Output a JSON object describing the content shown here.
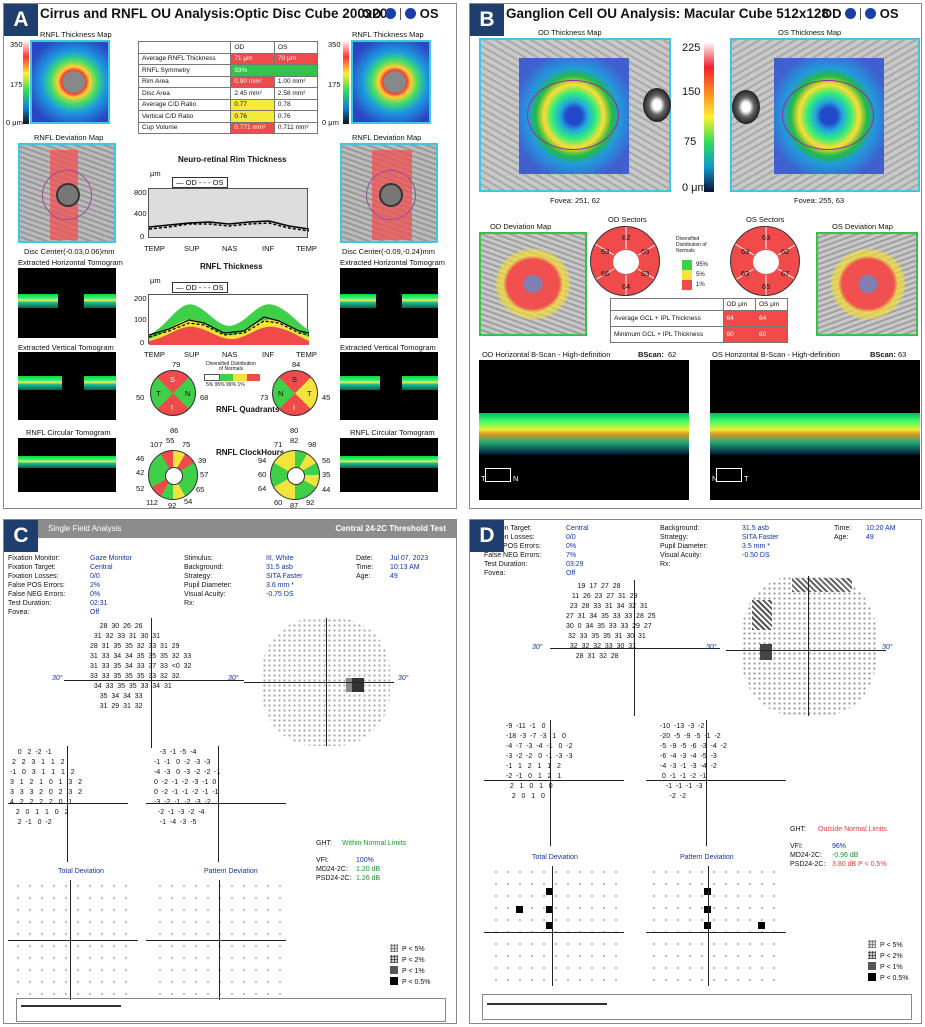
{
  "panelA": {
    "letter": "A",
    "title": "Cirrus and RNFL OU Analysis:Optic Disc Cube 200x200",
    "od": "OD",
    "os": "OS",
    "thick_left": "RNFL Thickness Map",
    "thick_right": "RNFL Thickness Map",
    "scale": [
      "350",
      "175",
      "0 μm"
    ],
    "dev_left": "RNFL Deviation Map",
    "dev_right": "RNFL Deviation Map",
    "disc_left": "Disc Center(-0.03,0.06)mm",
    "disc_right": "Disc Center(-0.09,-0.24)mm",
    "ext_h": "Extracted Horizontal Tomogram",
    "ext_v": "Extracted Vertical Tomogram",
    "circ": "RNFL Circular Tomogram",
    "table": {
      "head": [
        "",
        "OD",
        "OS"
      ],
      "rows": [
        [
          "Average RNFL Thickness",
          "71 μm",
          "70 μm"
        ],
        [
          "RNFL Symmetry",
          "93%",
          ""
        ],
        [
          "Rim Area",
          "0.90 mm²",
          "1.00 mm²"
        ],
        [
          "Disc Area",
          "2.45 mm²",
          "2.58 mm²"
        ],
        [
          "Average C/D Ratio",
          "0.77",
          "0.78"
        ],
        [
          "Vertical C/D Ratio",
          "0.76",
          "0.76"
        ],
        [
          "Cup Volume",
          "0.771 mm³",
          "0.711 mm³"
        ]
      ]
    },
    "rim_title": "Neuro-retinal Rim Thickness",
    "rnfl_title": "RNFL Thickness",
    "unit": "μm",
    "legend": "— OD  - - - OS",
    "xticks": [
      "TEMP",
      "SUP",
      "NAS",
      "INF",
      "TEMP"
    ],
    "rim_yticks": [
      "800",
      "400",
      "0"
    ],
    "rnfl_yticks": [
      "200",
      "100",
      "0"
    ],
    "distrib": "Diversified Distribution of Normals",
    "distrib_vals": [
      "5%",
      "95%",
      "99%",
      "1%"
    ],
    "quad_label": "RNFL Quadrants",
    "clock_label": "RNFL ClockHours",
    "quad_od": {
      "top": "79",
      "left": "50",
      "right": "68",
      "bottom": "86",
      "s": "S",
      "t": "T",
      "n": "N",
      "i": "I"
    },
    "quad_os": {
      "top": "84",
      "left": "73",
      "right": "45",
      "bottom": "80",
      "s": "S",
      "t": "T",
      "n": "N",
      "i": "I"
    },
    "clock_od": [
      "107",
      "55",
      "75",
      "57",
      "46",
      "42",
      "52",
      "112",
      "92",
      "54",
      "65",
      "39"
    ],
    "clock_os": [
      "71",
      "82",
      "98",
      "56",
      "35",
      "44",
      "60",
      "87",
      "92",
      "64",
      "60",
      "94"
    ]
  },
  "panelB": {
    "letter": "B",
    "title": "Ganglion Cell OU Analysis: Macular Cube 512x128",
    "od": "OD",
    "os": "OS",
    "od_map": "OD Thickness Map",
    "os_map": "OS Thickness Map",
    "scale": [
      "225",
      "150",
      "75",
      "0 μm"
    ],
    "fovea_od": "Fovea: 251, 62",
    "fovea_os": "Fovea: 255, 63",
    "od_dev": "OD Deviation Map",
    "os_dev": "OS Deviation Map",
    "od_sec": "OD Sectors",
    "os_sec": "OS Sectors",
    "od_sectors": [
      "62",
      "65",
      "63",
      "64",
      "66",
      "63"
    ],
    "os_sectors": [
      "63",
      "62",
      "67",
      "65",
      "63",
      "63"
    ],
    "distrib": "Diversified Distribution of Normals",
    "distrib_vals": [
      "95%",
      "5%",
      "1%"
    ],
    "table": {
      "head": [
        "",
        "OD μm",
        "OS μm"
      ],
      "rows": [
        [
          "Average GCL + IPL Thickness",
          "64",
          "64"
        ],
        [
          "Minimum GCL + IPL Thickness",
          "60",
          "60"
        ]
      ]
    },
    "bscan_od": "OD Horizontal B-Scan - High-definition",
    "bscan_os": "OS Horizontal B-Scan - High-definition",
    "bscan_lbl": "BScan:",
    "bscan_od_n": "62",
    "bscan_os_n": "63",
    "t": "T",
    "n": "N"
  },
  "panelC": {
    "letter": "C",
    "header_left": "Single Field Analysis",
    "header_right": "Central 24-2C Threshold Test",
    "info_left": [
      [
        "Fixation Monitor:",
        "Gaze Monitor"
      ],
      [
        "Fixation Target:",
        "Central"
      ],
      [
        "Fixation Losses:",
        "0/0"
      ],
      [
        "False POS Errors:",
        "2%"
      ],
      [
        "False NEG Errors:",
        "0%"
      ],
      [
        "Test Duration:",
        "02:31"
      ],
      [
        "Fovea:",
        "Off"
      ]
    ],
    "info_mid": [
      [
        "Stimulus:",
        "III, White"
      ],
      [
        "Background:",
        "31.5 asb"
      ],
      [
        "Strategy:",
        "SITA Faster"
      ],
      [
        "Pupil Diameter:",
        "3.6 mm *"
      ],
      [
        "Visual Acuity:",
        ""
      ],
      [
        "Rx:",
        "-0.75 DS"
      ]
    ],
    "info_right": [
      [
        "Date:",
        "Jul 07, 2023"
      ],
      [
        "Time:",
        "10:13 AM"
      ],
      [
        "Age:",
        "49"
      ]
    ],
    "deg": "30°",
    "thresh": "     28  30  26  26\n  31  32  33  31  30  31\n28  31  35  35  32  33  31  29\n31  33  34  34  35  35  35  32  33\n31  33  35  34  33  37  33  <0  32\n33  33  35  35  35  33  32  32\n  34  33  35  35  33  34  31\n     35  34  34  33\n     31  29  31  32",
    "td": "    0   2  -2  -1\n 2   2   3   1   1   2\n-1   0   3   1   1   1   2\n3   1   2   1   0   1   3   2\n3   3   3   2   0   2   3   2\n4   2   2   2   2   0   1\n   2   0   1   1   0   2\n    2  -1   0  -2",
    "pd": "   -3  -1  -5  -4\n-1  -1   0  -2  -3  -3\n-4  -3   0  -3  -2  -2  -1\n0  -2  -1  -2  -3  -1  0\n0  -2  -1  -1  -2  -1  -1\n-3  -2  -1  -2  -3  -2\n  -2  -1  -3  -2  -4\n   -1  -4  -3  -5",
    "td_label": "Total Deviation",
    "pd_label": "Pattern Deviation",
    "ght": "GHT:",
    "ght_val": "Within Normal Limits",
    "stats": [
      [
        "VFI:",
        "100%"
      ],
      [
        "MD24-2C:",
        "1.20 dB"
      ],
      [
        "PSD24-2C:",
        "1.26 dB"
      ]
    ],
    "legend": [
      "P < 5%",
      "P < 2%",
      "P < 1%",
      "P < 0.5%"
    ]
  },
  "panelD": {
    "letter": "D",
    "info_left": [
      [
        "Fixation Target:",
        "Central"
      ],
      [
        "Fixation Losses:",
        "0/0"
      ],
      [
        "False POS Errors:",
        "0%"
      ],
      [
        "False NEG Errors:",
        "7%"
      ],
      [
        "Test Duration:",
        "03:29"
      ],
      [
        "Fovea:",
        "Off"
      ]
    ],
    "info_mid": [
      [
        "Background:",
        "31.5 asb"
      ],
      [
        "Strategy:",
        "SITA Faster"
      ],
      [
        "Pupil Diameter:",
        "3.5 mm *"
      ],
      [
        "Visual Acuity:",
        ""
      ],
      [
        "Rx:",
        "-0.50 DS"
      ]
    ],
    "info_right": [
      [
        "Time:",
        "10:20 AM"
      ],
      [
        "Age:",
        "49"
      ]
    ],
    "deg": "30°",
    "thresh": "      19  17  27  28\n   11  26  23  27  31  29\n  23  28  33  31  34  32  31\n27  31  34  35  33  33  28  25\n30  0  34  35  33  33  29  27\n 32  33  35  35  31  30  31\n  32  32  32  33  30  31\n     28  31  32  28",
    "td": "-9  -11  -1   0\n-18  -3  -7  -3   1   0\n-4  -7  -3  -4  -1   0  -2\n-3  -2  -2   0  -1  -3  -3\n-1   1   2   1   1   2\n-2  -1   0   1   2   1\n  2   1   0   1   0\n   2   0   1   0",
    "pd": "-10  -13  -3  -2\n-20  -5  -9  -5  -1  -2\n-5  -9  -5  -6  -3  -4  -2\n-6  -4  -3  -4  -5  -3\n-4  -3  -1  -3  -4  -2\n 0  -1  -1  -2  -1\n   -1  -1  -1  -3\n     -2  -2",
    "td_label": "Total Deviation",
    "pd_label": "Pattern Deviation",
    "ght": "GHT:",
    "ght_val": "Outside Normal Limits",
    "stats": [
      [
        "VFI:",
        "96%"
      ],
      [
        "MD24-2C:",
        "-0.96 dB"
      ],
      [
        "PSD24-2C:",
        "3.80 dB P < 0.5%"
      ]
    ],
    "legend": [
      "P < 5%",
      "P < 2%",
      "P < 1%",
      "P < 0.5%"
    ]
  }
}
